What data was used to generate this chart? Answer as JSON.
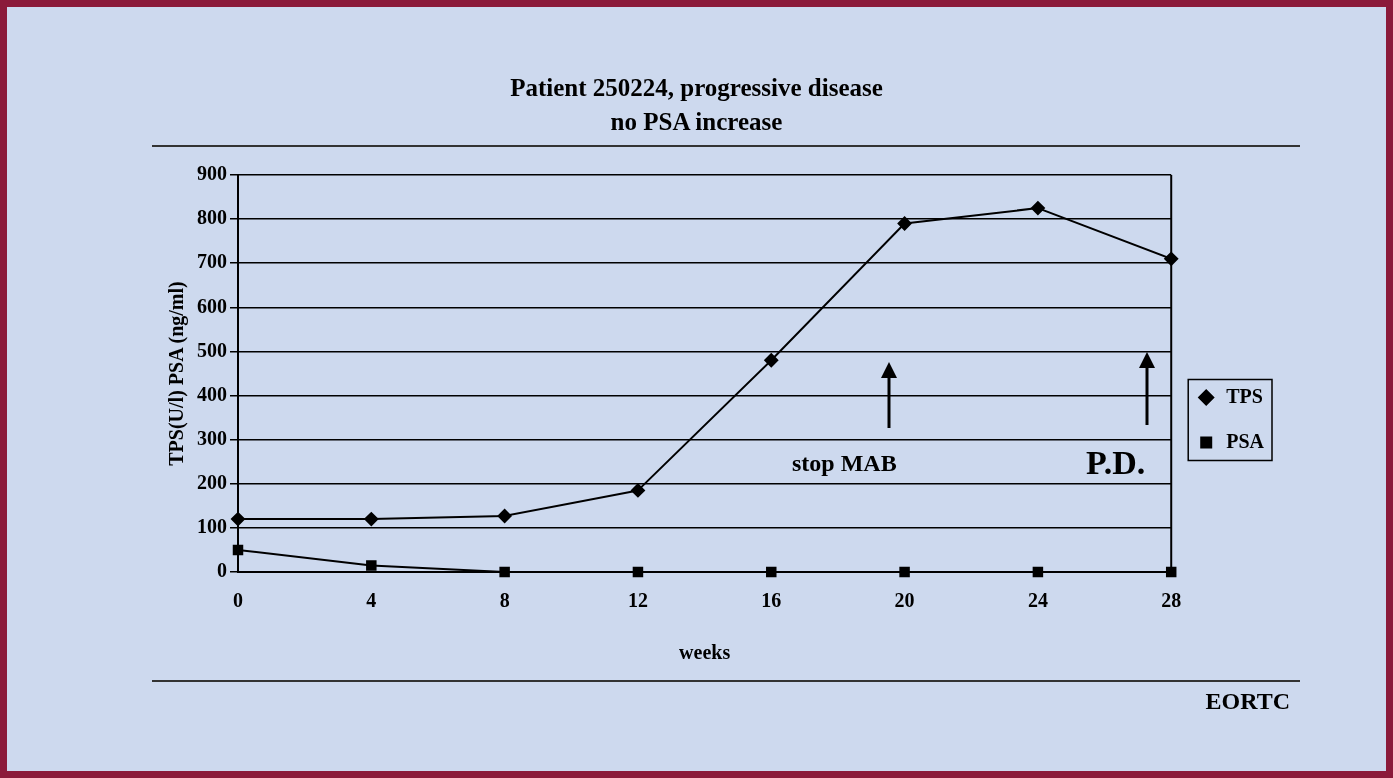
{
  "chart_data": {
    "type": "line",
    "title": "Patient 250224, progressive disease",
    "subtitle": "no PSA increase",
    "xlabel": "weeks",
    "ylabel": "TPS(U/l) PSA (ng/ml)",
    "x": [
      0,
      4,
      8,
      12,
      16,
      20,
      24,
      28
    ],
    "series": [
      {
        "name": "TPS",
        "color": "#000000",
        "marker": "diamond",
        "values": [
          120,
          120,
          127,
          185,
          480,
          790,
          825,
          710
        ]
      },
      {
        "name": "PSA",
        "color": "#000000",
        "marker": "square",
        "values": [
          50,
          15,
          0,
          0,
          0,
          0,
          0,
          0
        ]
      }
    ],
    "xlim": [
      0,
      28
    ],
    "xticks": [
      0,
      4,
      8,
      12,
      16,
      20,
      24,
      28
    ],
    "ylim": [
      0,
      900
    ],
    "yticks": [
      0,
      100,
      200,
      300,
      400,
      500,
      600,
      700,
      800,
      900
    ],
    "grid": "y",
    "legend": "right",
    "line_style": "solid",
    "annotations": [
      "stop MAB",
      "P.D.",
      "EORTC"
    ]
  }
}
